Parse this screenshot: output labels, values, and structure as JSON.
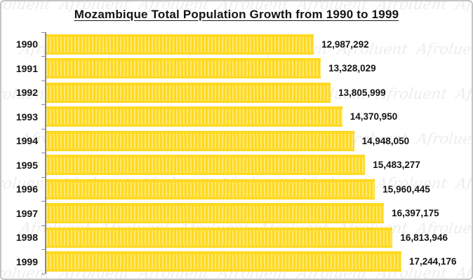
{
  "watermark": {
    "text": "Afroluent"
  },
  "chart_data": {
    "type": "bar",
    "orientation": "horizontal",
    "title": "Mozambique Total Population Growth from 1990 to 1999",
    "categories": [
      "1990",
      "1991",
      "1992",
      "1993",
      "1994",
      "1995",
      "1996",
      "1997",
      "1998",
      "1999"
    ],
    "values": [
      12987292,
      13328029,
      13805999,
      14370950,
      14948050,
      15483277,
      15960445,
      16397175,
      16813946,
      17244176
    ],
    "value_labels": [
      "12,987,292",
      "13,328,029",
      "13,805,999",
      "14,370,950",
      "14,948,050",
      "15,483,277",
      "15,960,445",
      "16,397,175",
      "16,813,946",
      "17,244,176"
    ],
    "xlim": [
      0,
      17244176
    ],
    "grid": false,
    "legend": "none",
    "bar_color": "#FFD921",
    "bar_stripe_color": "#FFE973",
    "axis_color": "#8A8A8A",
    "border_color": "#C4C4C4",
    "text_color": "#141414"
  }
}
